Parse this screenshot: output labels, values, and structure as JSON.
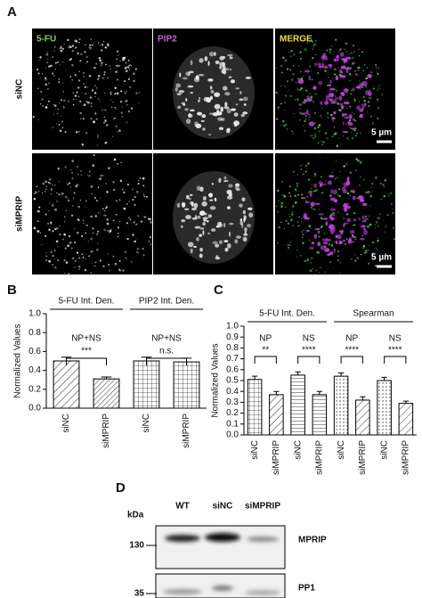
{
  "panel_labels": [
    "A",
    "B",
    "C",
    "D"
  ],
  "panel_a": {
    "channels": [
      "5-FU",
      "PIP2",
      "MERGE"
    ],
    "rows": [
      "siNC",
      "siMPRIP"
    ],
    "scale_bar": "5 µm"
  },
  "chart_data": [
    {
      "type": "bar",
      "ylabel": "Normalized Values",
      "categories": [
        "siNC",
        "siMPRIP",
        "siNC",
        "siMPRIP"
      ],
      "values": [
        0.5,
        0.31,
        0.5,
        0.49
      ],
      "errors": [
        0.04,
        0.02,
        0.04,
        0.04
      ],
      "ylim": [
        0,
        1
      ],
      "yticks": [
        {
          "value": 0,
          "label": "0.0"
        },
        0.2,
        0.4,
        0.6,
        0.8,
        {
          "value": 1,
          "label": "1.0"
        }
      ],
      "groups": [
        {
          "label": "5-FU Int. Den.",
          "comparisons": [
            {
              "condition": "NP+NS",
              "significance": "***"
            }
          ]
        },
        {
          "label": "PIP2 Int. Den.",
          "comparisons": [
            {
              "condition": "NP+NS",
              "significance": "n.s."
            }
          ]
        }
      ]
    },
    {
      "type": "bar",
      "ylabel": "Normalized Values",
      "categories": [
        "siNC",
        "siMPRIP",
        "siNC",
        "siMPRIP",
        "siNC",
        "siMPRIP",
        "siNC",
        "siMPRIP"
      ],
      "values": [
        0.51,
        0.37,
        0.55,
        0.37,
        0.54,
        0.32,
        0.5,
        0.29
      ],
      "errors": [
        0.03,
        0.03,
        0.03,
        0.03,
        0.03,
        0.03,
        0.03,
        0.02
      ],
      "ylim": [
        0,
        1
      ],
      "yticks": [
        {
          "value": 0,
          "label": "0.0"
        },
        0.1,
        0.2,
        0.3,
        0.4,
        0.5,
        0.6,
        0.7,
        0.8,
        0.9,
        {
          "value": 1,
          "label": "1.0"
        }
      ],
      "groups": [
        {
          "label": "5-FU Int. Den.",
          "comparisons": [
            {
              "condition": "NP",
              "significance": "**"
            },
            {
              "condition": "NS",
              "significance": "****"
            }
          ]
        },
        {
          "label": "Spearman",
          "comparisons": [
            {
              "condition": "NP",
              "significance": "****"
            },
            {
              "condition": "NS",
              "significance": "****"
            }
          ]
        }
      ]
    }
  ],
  "panel_d": {
    "unit": "kDa",
    "lanes": [
      "WT",
      "siNC",
      "siMPRIP"
    ],
    "bands": [
      "MPRIP",
      "PP1"
    ],
    "markers": [
      130,
      35
    ]
  }
}
